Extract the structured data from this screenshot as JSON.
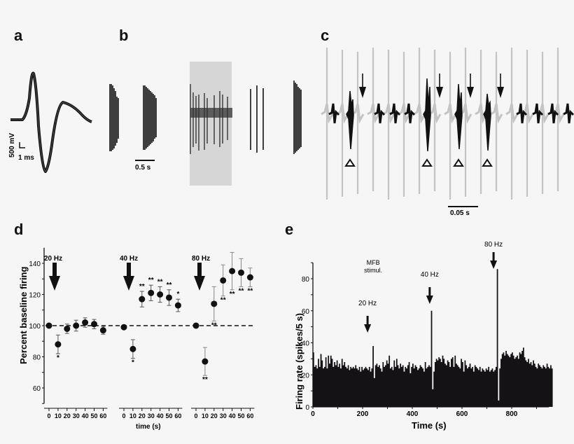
{
  "panels": {
    "a": {
      "letter": "a",
      "scale_v": "500 mV",
      "scale_t": "1 ms"
    },
    "b": {
      "letter": "b",
      "scale": "0.5 s"
    },
    "c": {
      "letter": "c",
      "scale": "0.05 s",
      "arrows": 4,
      "triangles": 4
    },
    "d": {
      "letter": "d"
    },
    "e": {
      "letter": "e"
    }
  },
  "colors": {
    "background": "#f6f6f6",
    "ink": "#111111",
    "gray_trace": "#c4c4c4",
    "shade": "#d6d6d6"
  },
  "chart_data": [
    {
      "id": "d",
      "type": "scatter",
      "title": "",
      "xlabel": "time (s)",
      "ylabel": "Percent baseline firing",
      "ylim": [
        50,
        150
      ],
      "yticks": [
        60,
        80,
        100,
        120,
        140
      ],
      "xticks": [
        0,
        10,
        20,
        30,
        40,
        50,
        60
      ],
      "reference_line": {
        "y": 100,
        "style": "dashed"
      },
      "grid": false,
      "series": [
        {
          "name": "20 Hz",
          "x": [
            0,
            10,
            20,
            30,
            40,
            50,
            60
          ],
          "values": [
            100,
            88,
            98,
            100,
            102,
            101,
            97
          ],
          "errors": [
            0,
            6,
            3,
            3.5,
            3,
            3,
            2.5
          ],
          "marks": [
            "",
            "*",
            "",
            "",
            "",
            "",
            ""
          ]
        },
        {
          "name": "40 Hz",
          "x": [
            0,
            10,
            20,
            30,
            40,
            50,
            60
          ],
          "values": [
            99,
            85,
            117,
            121,
            120,
            118,
            113
          ],
          "errors": [
            0,
            6,
            5,
            5,
            5,
            5,
            4
          ],
          "marks": [
            "",
            "*",
            "**",
            "**",
            "**",
            "**",
            "*"
          ]
        },
        {
          "name": "80 Hz",
          "x": [
            0,
            10,
            20,
            30,
            40,
            50,
            60
          ],
          "values": [
            100,
            77,
            114,
            129,
            135,
            134,
            131
          ],
          "errors": [
            0,
            9,
            11,
            10,
            12,
            9,
            6
          ],
          "marks": [
            "",
            "**",
            "**",
            "**",
            "**",
            "**",
            "**"
          ]
        }
      ]
    },
    {
      "id": "e",
      "type": "bar",
      "title": "",
      "xlabel": "Time (s)",
      "ylabel": "Firing rate (spikes/5 s)",
      "xlim": [
        0,
        950
      ],
      "ylim": [
        0,
        90
      ],
      "xticks": [
        0,
        200,
        400,
        600,
        800
      ],
      "yticks": [
        0,
        20,
        40,
        60,
        80
      ],
      "bin_width_s": 5,
      "annotations": [
        {
          "text": "MFB stimul.",
          "x": 220
        },
        {
          "text": "20 Hz",
          "x": 220
        },
        {
          "text": "40 Hz",
          "x": 470
        },
        {
          "text": "80 Hz",
          "x": 727
        }
      ],
      "values": [
        34,
        25,
        26,
        24,
        30,
        25,
        33,
        29,
        24,
        25,
        31,
        24,
        32,
        27,
        32,
        30,
        25,
        28,
        26,
        29,
        25,
        27,
        24,
        30,
        26,
        28,
        25,
        24,
        26,
        23,
        25,
        24,
        25,
        24,
        26,
        24,
        23,
        25,
        22,
        25,
        23,
        24,
        25,
        24,
        23,
        25,
        22,
        24,
        38,
        18,
        26,
        27,
        25,
        26,
        24,
        22,
        28,
        25,
        26,
        29,
        27,
        32,
        24,
        25,
        23,
        29,
        25,
        30,
        26,
        24,
        27,
        25,
        26,
        22,
        25,
        24,
        26,
        28,
        21,
        25,
        27,
        24,
        26,
        25,
        23,
        24,
        26,
        25,
        24,
        22,
        28,
        24,
        25,
        26,
        25,
        60,
        11,
        22,
        28,
        30,
        29,
        31,
        30,
        28,
        32,
        30,
        27,
        26,
        29,
        28,
        25,
        30,
        31,
        25,
        32,
        27,
        26,
        25,
        24,
        30,
        28,
        22,
        29,
        26,
        24,
        25,
        27,
        24,
        25,
        22,
        26,
        25,
        24,
        23,
        25,
        22,
        24,
        23,
        22,
        24,
        23,
        25,
        22,
        23,
        24,
        22,
        23,
        25,
        86,
        4,
        24,
        30,
        33,
        34,
        32,
        35,
        33,
        32,
        31,
        33,
        34,
        32,
        30,
        31,
        32,
        30,
        34,
        33,
        35,
        37,
        31,
        29,
        28,
        30,
        27,
        28,
        26,
        29,
        27,
        25,
        24,
        27,
        26,
        25,
        24,
        26,
        25,
        24,
        27,
        25,
        24,
        26,
        24
      ]
    }
  ]
}
